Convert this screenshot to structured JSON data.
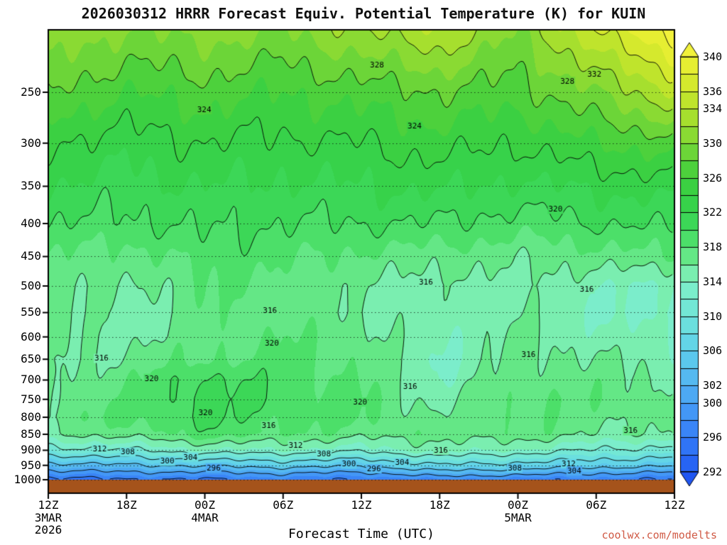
{
  "chart": {
    "title": "2026030312 HRRR Forecast Equiv. Potential Temperature (K) for KUIN",
    "x_axis_title": "Forecast Time (UTC)",
    "credit": "coolwx.com/modelts",
    "credit_color": "#d05a45"
  },
  "chart_data": {
    "type": "heatmap",
    "title": "2026030312 HRRR Forecast Equiv. Potential Temperature (K) for KUIN",
    "xlabel": "Forecast Time (UTC)",
    "x_hours": [
      0,
      6,
      12,
      18,
      24,
      30,
      36,
      42,
      48
    ],
    "x_tick_labels": [
      "12Z",
      "18Z",
      "00Z",
      "06Z",
      "12Z",
      "18Z",
      "00Z",
      "06Z",
      "12Z"
    ],
    "x_date_labels": [
      {
        "tick_index": 0,
        "lines": [
          "3MAR",
          "2026"
        ]
      },
      {
        "tick_index": 2,
        "lines": [
          "4MAR"
        ]
      },
      {
        "tick_index": 6,
        "lines": [
          "5MAR"
        ]
      }
    ],
    "y_axis": {
      "scale": "log",
      "top_pressure": 200,
      "bottom_pressure": 1000,
      "ticks": [
        250,
        300,
        350,
        400,
        450,
        500,
        550,
        600,
        650,
        700,
        750,
        800,
        850,
        900,
        950,
        1000
      ]
    },
    "pressure_levels": [
      200,
      250,
      300,
      350,
      400,
      450,
      500,
      550,
      600,
      650,
      700,
      750,
      800,
      850,
      900,
      950,
      975,
      1000
    ],
    "values_theta_e_K": [
      [
        332,
        330,
        331,
        330,
        332,
        334,
        330,
        336,
        341
      ],
      [
        328,
        326,
        327,
        326,
        327,
        328,
        327,
        330,
        334
      ],
      [
        324,
        323,
        324,
        323.5,
        324,
        325,
        324,
        326,
        327
      ],
      [
        322,
        321,
        322,
        321.5,
        322,
        322.5,
        321.5,
        322.5,
        323
      ],
      [
        320,
        319.5,
        320.5,
        320,
        320,
        320,
        319,
        320,
        320.5
      ],
      [
        318,
        317,
        319,
        318.5,
        317.5,
        317,
        316.5,
        317,
        318
      ],
      [
        317,
        315.5,
        318,
        317.5,
        316,
        315,
        315.5,
        314.5,
        313.5
      ],
      [
        316.5,
        315,
        317.5,
        317,
        316,
        314.5,
        316,
        314,
        313
      ],
      [
        316,
        315.5,
        317,
        318,
        317,
        314,
        316.5,
        315,
        314
      ],
      [
        315.5,
        316.5,
        318,
        318.5,
        317.5,
        313.5,
        317,
        316,
        315
      ],
      [
        316,
        317.5,
        320.5,
        319,
        318,
        314,
        317.5,
        317,
        316
      ],
      [
        316.5,
        318,
        321,
        319.5,
        318.5,
        315,
        318,
        317.5,
        316.5
      ],
      [
        317,
        318.5,
        320.5,
        319,
        318.5,
        316,
        318,
        317,
        316.5
      ],
      [
        316,
        317,
        319,
        318,
        317,
        317,
        317.5,
        316,
        315.5
      ],
      [
        311,
        312,
        314,
        314,
        313,
        315,
        314,
        312,
        311
      ],
      [
        303,
        304,
        305,
        306,
        305,
        308,
        307,
        306,
        305
      ],
      [
        299,
        300,
        300,
        301,
        300,
        303,
        302,
        301,
        300
      ],
      [
        295,
        296,
        296,
        297,
        296,
        298,
        297,
        297,
        296
      ]
    ],
    "fill_interval_K": 2,
    "contour_line_interval_K": 4,
    "contour_min": 292,
    "contour_max": 340,
    "colorbar": {
      "min": 292,
      "max": 340,
      "labels": [
        340,
        336,
        334,
        330,
        326,
        322,
        318,
        314,
        310,
        306,
        302,
        300,
        296,
        292
      ]
    },
    "palette_stops": [
      [
        290,
        "#1d4ff0"
      ],
      [
        294,
        "#2b6cf6"
      ],
      [
        298,
        "#3f8ef8"
      ],
      [
        302,
        "#52b2f2"
      ],
      [
        306,
        "#5fd0ec"
      ],
      [
        310,
        "#6fe5da"
      ],
      [
        314,
        "#80f0c6"
      ],
      [
        316,
        "#74ec9a"
      ],
      [
        318,
        "#54e372"
      ],
      [
        322,
        "#35d34f"
      ],
      [
        326,
        "#3ecf3e"
      ],
      [
        330,
        "#7cd836"
      ],
      [
        334,
        "#b4e22c"
      ],
      [
        338,
        "#e0ec2e"
      ],
      [
        342,
        "#f8f440"
      ]
    ],
    "ground_color": "#a5531b",
    "contour_labels": [
      {
        "v": "328",
        "fx": 0.525,
        "fy": 0.077
      },
      {
        "v": "332",
        "fx": 0.872,
        "fy": 0.097
      },
      {
        "v": "328",
        "fx": 0.829,
        "fy": 0.112
      },
      {
        "v": "324",
        "fx": 0.249,
        "fy": 0.173
      },
      {
        "v": "324",
        "fx": 0.585,
        "fy": 0.209
      },
      {
        "v": "320",
        "fx": 0.81,
        "fy": 0.388
      },
      {
        "v": "316",
        "fx": 0.603,
        "fy": 0.545
      },
      {
        "v": "316",
        "fx": 0.354,
        "fy": 0.607
      },
      {
        "v": "320",
        "fx": 0.357,
        "fy": 0.677
      },
      {
        "v": "316",
        "fx": 0.085,
        "fy": 0.71
      },
      {
        "v": "316",
        "fx": 0.767,
        "fy": 0.701
      },
      {
        "v": "320",
        "fx": 0.165,
        "fy": 0.753
      },
      {
        "v": "316",
        "fx": 0.578,
        "fy": 0.77
      },
      {
        "v": "320",
        "fx": 0.498,
        "fy": 0.804
      },
      {
        "v": "320",
        "fx": 0.251,
        "fy": 0.827
      },
      {
        "v": "316",
        "fx": 0.352,
        "fy": 0.855
      },
      {
        "v": "316",
        "fx": 0.93,
        "fy": 0.866
      },
      {
        "v": "316",
        "fx": 0.86,
        "fy": 0.56
      },
      {
        "v": "312",
        "fx": 0.395,
        "fy": 0.897
      },
      {
        "v": "312",
        "fx": 0.082,
        "fy": 0.905
      },
      {
        "v": "308",
        "fx": 0.127,
        "fy": 0.912
      },
      {
        "v": "304",
        "fx": 0.227,
        "fy": 0.923
      },
      {
        "v": "300",
        "fx": 0.19,
        "fy": 0.932
      },
      {
        "v": "296",
        "fx": 0.264,
        "fy": 0.947
      },
      {
        "v": "308",
        "fx": 0.44,
        "fy": 0.916
      },
      {
        "v": "300",
        "fx": 0.48,
        "fy": 0.938
      },
      {
        "v": "296",
        "fx": 0.52,
        "fy": 0.948
      },
      {
        "v": "304",
        "fx": 0.565,
        "fy": 0.935
      },
      {
        "v": "316",
        "fx": 0.627,
        "fy": 0.908
      },
      {
        "v": "308",
        "fx": 0.745,
        "fy": 0.947
      },
      {
        "v": "312",
        "fx": 0.831,
        "fy": 0.937
      },
      {
        "v": "304",
        "fx": 0.84,
        "fy": 0.953
      }
    ]
  }
}
